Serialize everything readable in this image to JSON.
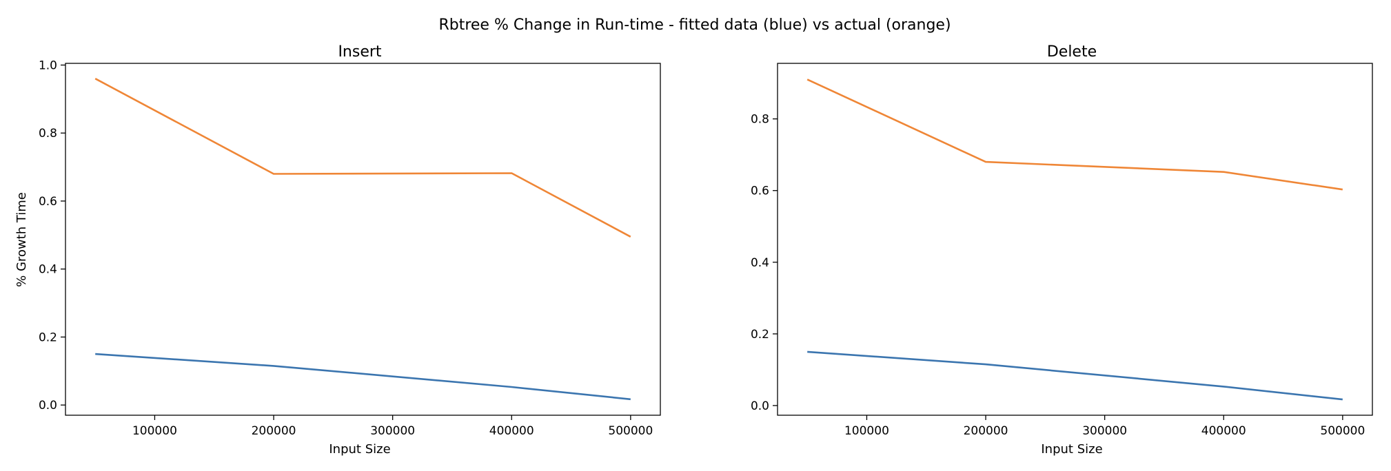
{
  "figure": {
    "suptitle": "Rbtree % Change in Run-time - fitted data (blue) vs actual (orange)"
  },
  "colors": {
    "fitted": "#3b75af",
    "actual": "#ef8636",
    "axis": "#000000",
    "background": "#ffffff"
  },
  "chart_data": [
    {
      "type": "line",
      "title": "Insert",
      "xlabel": "Input Size",
      "ylabel": "% Growth Time",
      "xlim": [
        25000,
        525000
      ],
      "ylim": [
        -0.03,
        1.005
      ],
      "xticks": [
        100000,
        200000,
        300000,
        400000,
        500000
      ],
      "yticks": [
        "0.0",
        "0.2",
        "0.4",
        "0.6",
        "0.8",
        "1.0"
      ],
      "grid": false,
      "x": [
        50000,
        200000,
        400000,
        500000
      ],
      "series": [
        {
          "color": "#ef8636",
          "values": [
            0.96,
            0.68,
            0.682,
            0.495
          ]
        },
        {
          "color": "#3b75af",
          "values": [
            0.15,
            0.115,
            0.053,
            0.017
          ]
        }
      ]
    },
    {
      "type": "line",
      "title": "Delete",
      "xlabel": "Input Size",
      "ylabel": "",
      "xlim": [
        25000,
        525000
      ],
      "ylim": [
        -0.027,
        0.955
      ],
      "xticks": [
        100000,
        200000,
        300000,
        400000,
        500000
      ],
      "yticks": [
        "0.0",
        "0.2",
        "0.4",
        "0.6",
        "0.8"
      ],
      "grid": false,
      "x": [
        50000,
        200000,
        400000,
        500000
      ],
      "series": [
        {
          "color": "#ef8636",
          "values": [
            0.91,
            0.68,
            0.652,
            0.603
          ]
        },
        {
          "color": "#3b75af",
          "values": [
            0.15,
            0.115,
            0.053,
            0.017
          ]
        }
      ]
    }
  ]
}
